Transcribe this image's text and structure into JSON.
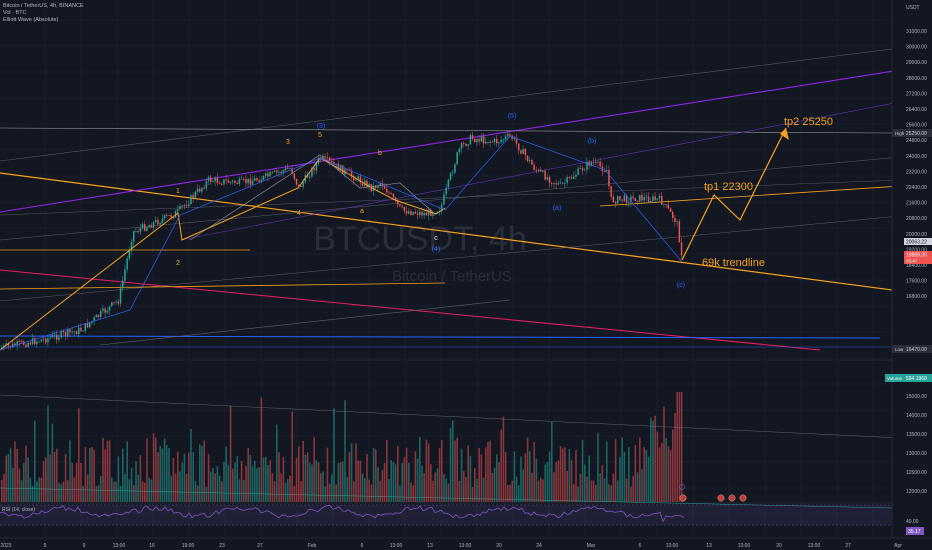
{
  "legend": {
    "symbol": "Bitcoin / TetherUS, 4h, BINANCE",
    "volume": "Vol · BTC",
    "indicator": "Elliott Wave (Absolute)"
  },
  "watermark": {
    "ticker": "BTCUSDT, 4h",
    "name": "Bitcoin / TetherUS"
  },
  "price_axis": {
    "unit": "USDT",
    "ticks": [
      "31000.00",
      "30000.00",
      "29000.00",
      "28000.00",
      "27200.00",
      "26400.00",
      "25600.00",
      "24800.00",
      "24000.00",
      "23200.00",
      "22400.00",
      "21600.00",
      "20800.00",
      "20000.00",
      "19200.00",
      "18400.00",
      "17600.00",
      "16800.00"
    ],
    "high_label": "High",
    "high_value": "25250.00",
    "low_label": "Low",
    "low_value": "16470.00",
    "current_value": "20063.22",
    "current_time": "03:47",
    "extra_value": "19889.30",
    "volume_label": "Volume",
    "volume_value": "594.1968",
    "volume_ticks": [
      "15000.00",
      "14000.00",
      "13500.00",
      "13000.00",
      "12500.00",
      "12000.00"
    ],
    "rsi_ticks": [
      "40.00"
    ],
    "rsi_value": "35.17"
  },
  "time_axis": [
    "2023",
    "5",
    "9",
    "13:00",
    "16",
    "19:00",
    "23",
    "27",
    "Feb",
    "6",
    "13:00",
    "13",
    "13:00",
    "20",
    "24",
    "Mar",
    "6",
    "13:00",
    "13",
    "13:00",
    "20",
    "13:00",
    "27",
    "Apr"
  ],
  "annotations": {
    "tp1": "tp1 22300",
    "tp2": "tp2 25250",
    "trendline": "69k trendline"
  },
  "waves": {
    "w1": "1",
    "w2": "2",
    "w3": "3",
    "w4": "4",
    "w5": "5",
    "wa": "a",
    "wb": "b",
    "wc": "c",
    "b3": "(3)",
    "b4": "(4)",
    "b5": "(5)",
    "ba": "(a)",
    "bb": "(b)",
    "bc": "(c)"
  },
  "rsi": {
    "label": "RSI (14, close)"
  },
  "colors": {
    "background": "#131722",
    "up": "#26a69a",
    "down": "#ef5350",
    "orange": "#f7a21b",
    "purple": "#8e24e8",
    "blue": "#2962ff"
  }
}
